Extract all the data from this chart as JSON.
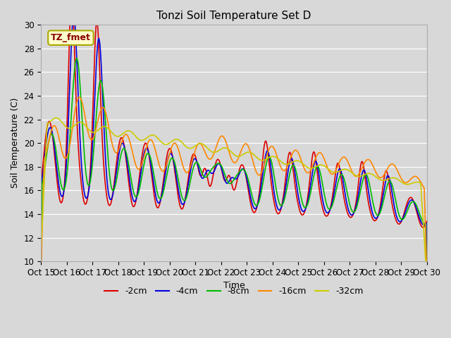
{
  "title": "Tonzi Soil Temperature Set D",
  "xlabel": "Time",
  "ylabel": "Soil Temperature (C)",
  "ylim": [
    10,
    30
  ],
  "background_color": "#d8d8d8",
  "plot_bg_color": "#d8d8d8",
  "annotation_text": "TZ_fmet",
  "annotation_bg": "#ffffcc",
  "annotation_border": "#aaaa00",
  "legend_labels": [
    "-2cm",
    "-4cm",
    "-8cm",
    "-16cm",
    "-32cm"
  ],
  "legend_colors": [
    "#dd0000",
    "#0000dd",
    "#00bb00",
    "#ff8800",
    "#cccc00"
  ],
  "line_width": 1.2,
  "tick_labels": [
    "Oct 15",
    "Oct 16",
    "Oct 17",
    "Oct 18",
    "Oct 19",
    "Oct 20",
    "Oct 21",
    "Oct 22",
    "Oct 23",
    "Oct 24",
    "Oct 25",
    "Oct 26",
    "Oct 27",
    "Oct 28",
    "Oct 29",
    "Oct 30"
  ],
  "yticks": [
    10,
    12,
    14,
    16,
    18,
    20,
    22,
    24,
    26,
    28,
    30
  ]
}
